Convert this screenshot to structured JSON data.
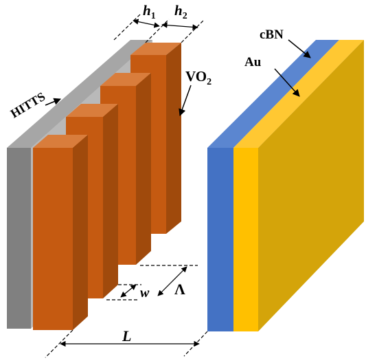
{
  "labels": {
    "substrate": "HITTS",
    "grating": "VO",
    "grating_sub": "2",
    "coating_outer": "cBN",
    "coating_inner": "Au",
    "height1": "h",
    "height1_sub": "1",
    "height2": "h",
    "height2_sub": "2",
    "width": "w",
    "period": "Λ",
    "gap": "L"
  },
  "colors": {
    "substrate_front": "#808080",
    "substrate_top": "#a6a6a6",
    "vo2_front": "#c55a11",
    "vo2_side": "#a04a0c",
    "vo2_top": "#d97d3c",
    "cbn_front": "#4472c4",
    "cbn_top": "#5b86d0",
    "au_front": "#ffc000",
    "au_side": "#d4a40a",
    "au_top": "#ffc832"
  },
  "icons": {
    "leader": "arrow-icon",
    "dimension": "double-arrow-icon"
  }
}
